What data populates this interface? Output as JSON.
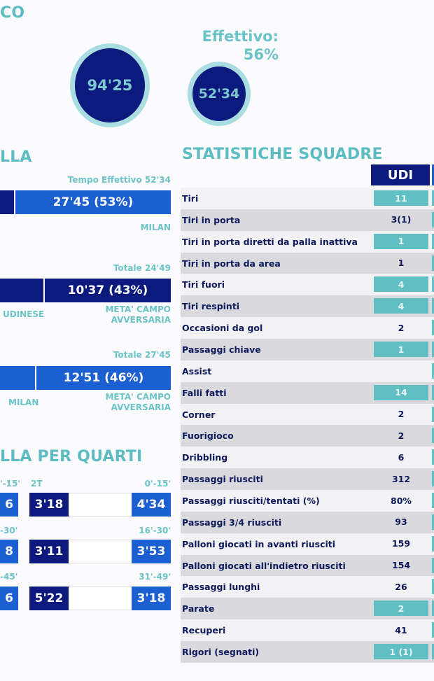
{
  "colors": {
    "navy": "#0b1a7c",
    "blue": "#1c5fd0",
    "teal": "#5fbfc3",
    "ring": "#a9dde1"
  },
  "header": {
    "title_fragment": "CO"
  },
  "times": {
    "total": "94'25",
    "effective": "52'34",
    "effective_label": "Effettivo:",
    "effective_pct": "56%"
  },
  "possession": {
    "title_fragment": "LLA",
    "bar1": {
      "caption": "Tempo Effettivo 52'34",
      "right_value": "27'45 (53%)",
      "right_team": "MILAN",
      "right_share_pct": 53
    },
    "bar2": {
      "caption": "Totale 24'49",
      "right_value": "10'37 (43%)",
      "left_team": "UDINESE",
      "right_label": "META' CAMPO AVVERSARIA",
      "right_share_pct": 43
    },
    "bar3": {
      "caption": "Totale 27'45",
      "right_value": "12'51 (46%)",
      "left_team": "MILAN",
      "right_label": "META' CAMPO AVVERSARIA",
      "right_share_pct": 46
    }
  },
  "quarters": {
    "title_fragment": "LLA PER QUARTI",
    "half_label": "2T",
    "rows": [
      {
        "left_label": "'-15'",
        "left_value": "6",
        "mid_value": "3'18",
        "right_label": "0'-15'",
        "right_value": "4'34"
      },
      {
        "left_label": "-30'",
        "left_value": "8",
        "mid_value": "3'11",
        "right_label": "16'-30'",
        "right_value": "3'53"
      },
      {
        "left_label": "-45'",
        "left_value": "6",
        "mid_value": "5'22",
        "right_label": "31'-49'",
        "right_value": "3'18"
      }
    ]
  },
  "stats": {
    "title": "STATISTICHE SQUADRE",
    "team": "UDI",
    "rows": [
      {
        "label": "Tiri",
        "value": "11",
        "highlight": true
      },
      {
        "label": "Tiri in porta",
        "value": "3(1)",
        "highlight": false
      },
      {
        "label": "Tiri in porta diretti da palla inattiva",
        "value": "1",
        "highlight": true
      },
      {
        "label": "Tiri in porta da area",
        "value": "1",
        "highlight": false
      },
      {
        "label": "Tiri fuori",
        "value": "4",
        "highlight": true
      },
      {
        "label": "Tiri respinti",
        "value": "4",
        "highlight": true
      },
      {
        "label": "Occasioni da gol",
        "value": "2",
        "highlight": false
      },
      {
        "label": "Passaggi chiave",
        "value": "1",
        "highlight": true
      },
      {
        "label": "Assist",
        "value": "",
        "highlight": false
      },
      {
        "label": "Falli fatti",
        "value": "14",
        "highlight": true
      },
      {
        "label": "Corner",
        "value": "2",
        "highlight": false
      },
      {
        "label": "Fuorigioco",
        "value": "2",
        "highlight": false
      },
      {
        "label": "Dribbling",
        "value": "6",
        "highlight": false
      },
      {
        "label": "Passaggi riusciti",
        "value": "312",
        "highlight": false
      },
      {
        "label": "Passaggi riusciti/tentati (%)",
        "value": "80%",
        "highlight": false
      },
      {
        "label": "Passaggi 3/4 riusciti",
        "value": "93",
        "highlight": false
      },
      {
        "label": "Palloni giocati in avanti riusciti",
        "value": "159",
        "highlight": false
      },
      {
        "label": "Palloni giocati all'indietro riusciti",
        "value": "154",
        "highlight": false
      },
      {
        "label": "Passaggi lunghi",
        "value": "26",
        "highlight": false
      },
      {
        "label": "Parate",
        "value": "2",
        "highlight": true
      },
      {
        "label": "Recuperi",
        "value": "41",
        "highlight": false
      },
      {
        "label": "Rigori (segnati)",
        "value": "1 (1)",
        "highlight": true
      }
    ]
  }
}
